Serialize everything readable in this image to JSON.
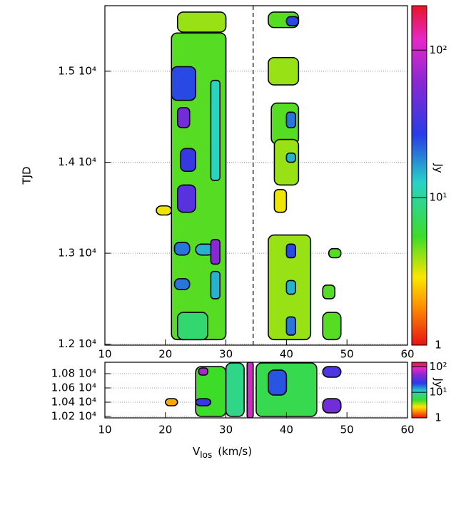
{
  "chart_data": [
    {
      "type": "heatmap",
      "ylabel": "TJD",
      "colorbar_label": "Jy",
      "log_color": true,
      "grid": true,
      "xlim": [
        10,
        60
      ],
      "xticks": [
        10,
        20,
        30,
        40,
        50,
        60
      ],
      "ylim": [
        11990,
        15720
      ],
      "yticks": [
        {
          "value": 12000,
          "label": "1.2 10⁴"
        },
        {
          "value": 13000,
          "label": "1.3 10⁴"
        },
        {
          "value": 14000,
          "label": "1.4 10⁴"
        },
        {
          "value": 15000,
          "label": "1.5 10⁴"
        }
      ],
      "clim": [
        1,
        200
      ],
      "cticks": [
        1,
        {
          "value": 10,
          "label": "10¹"
        },
        {
          "value": 100,
          "label": "10²"
        }
      ],
      "vline": 34.5,
      "cells": [
        {
          "x": [
            22,
            30
          ],
          "y": [
            15430,
            15650
          ],
          "value": 4
        },
        {
          "x": [
            21,
            30
          ],
          "y": [
            12050,
            15420
          ],
          "value": 5
        },
        {
          "x": [
            18.5,
            21
          ],
          "y": [
            13420,
            13520
          ],
          "value": 3
        },
        {
          "x": [
            21,
            25
          ],
          "y": [
            14680,
            15050
          ],
          "value": 25
        },
        {
          "x": [
            22,
            24
          ],
          "y": [
            14380,
            14600
          ],
          "value": 50
        },
        {
          "x": [
            22.5,
            25
          ],
          "y": [
            13900,
            14150
          ],
          "value": 30
        },
        {
          "x": [
            22,
            25
          ],
          "y": [
            13450,
            13750
          ],
          "value": 40
        },
        {
          "x": [
            21.5,
            24
          ],
          "y": [
            12980,
            13120
          ],
          "value": 20
        },
        {
          "x": [
            25,
            28
          ],
          "y": [
            12980,
            13100
          ],
          "value": 15
        },
        {
          "x": [
            27.5,
            29
          ],
          "y": [
            12880,
            13150
          ],
          "value": 60
        },
        {
          "x": [
            21.5,
            24
          ],
          "y": [
            12600,
            12720
          ],
          "value": 20
        },
        {
          "x": [
            27.5,
            29
          ],
          "y": [
            12500,
            12800
          ],
          "value": 15
        },
        {
          "x": [
            22,
            27
          ],
          "y": [
            12050,
            12350
          ],
          "value": 8
        },
        {
          "x": [
            27.5,
            29
          ],
          "y": [
            13800,
            14900
          ],
          "value": 12
        },
        {
          "x": [
            37,
            42
          ],
          "y": [
            15480,
            15650
          ],
          "value": 5
        },
        {
          "x": [
            40,
            42
          ],
          "y": [
            15500,
            15600
          ],
          "value": 25
        },
        {
          "x": [
            37,
            42
          ],
          "y": [
            14850,
            15150
          ],
          "value": 4
        },
        {
          "x": [
            37.5,
            42
          ],
          "y": [
            14200,
            14650
          ],
          "value": 5
        },
        {
          "x": [
            40,
            41.5
          ],
          "y": [
            14380,
            14550
          ],
          "value": 20
        },
        {
          "x": [
            38,
            42
          ],
          "y": [
            13750,
            14250
          ],
          "value": 4
        },
        {
          "x": [
            40,
            41.5
          ],
          "y": [
            14000,
            14100
          ],
          "value": 15
        },
        {
          "x": [
            38,
            40
          ],
          "y": [
            13450,
            13700
          ],
          "value": 3
        },
        {
          "x": [
            37,
            44
          ],
          "y": [
            12050,
            13200
          ],
          "value": 4
        },
        {
          "x": [
            40,
            41.5
          ],
          "y": [
            12950,
            13100
          ],
          "value": 25
        },
        {
          "x": [
            40,
            41.5
          ],
          "y": [
            12550,
            12700
          ],
          "value": 15
        },
        {
          "x": [
            40,
            41.5
          ],
          "y": [
            12100,
            12300
          ],
          "value": 20
        },
        {
          "x": [
            46,
            49
          ],
          "y": [
            12050,
            12350
          ],
          "value": 5
        },
        {
          "x": [
            46,
            48
          ],
          "y": [
            12500,
            12650
          ],
          "value": 5
        },
        {
          "x": [
            47,
            49
          ],
          "y": [
            12950,
            13050
          ],
          "value": 5
        }
      ]
    },
    {
      "type": "heatmap",
      "colorbar_label": "Jy",
      "log_color": true,
      "grid": true,
      "xlabel": {
        "main": "V",
        "sub": "los",
        "unit": "(km/s)"
      },
      "xlim": [
        10,
        60
      ],
      "xticks": [
        10,
        20,
        30,
        40,
        50,
        60
      ],
      "ylim": [
        10180,
        10960
      ],
      "yticks": [
        {
          "value": 10200,
          "label": "1.02 10⁴"
        },
        {
          "value": 10400,
          "label": "1.04 10⁴"
        },
        {
          "value": 10600,
          "label": "1.06 10⁴"
        },
        {
          "value": 10800,
          "label": "1.08 10⁴"
        }
      ],
      "clim": [
        1,
        150
      ],
      "cticks": [
        1,
        {
          "value": 10,
          "label": "10¹"
        },
        {
          "value": 100,
          "label": "10²"
        }
      ],
      "cells": [
        {
          "x": [
            25,
            30
          ],
          "y": [
            10200,
            10900
          ],
          "value": 5
        },
        {
          "x": [
            25.5,
            27
          ],
          "y": [
            10780,
            10880
          ],
          "value": 60
        },
        {
          "x": [
            25,
            27.5
          ],
          "y": [
            10350,
            10450
          ],
          "value": 25
        },
        {
          "x": [
            30,
            33
          ],
          "y": [
            10200,
            10950
          ],
          "value": 8
        },
        {
          "x": [
            35,
            45
          ],
          "y": [
            10200,
            10950
          ],
          "value": 6
        },
        {
          "x": [
            37,
            40
          ],
          "y": [
            10500,
            10850
          ],
          "value": 20
        },
        {
          "x": [
            46,
            49
          ],
          "y": [
            10750,
            10900
          ],
          "value": 30
        },
        {
          "x": [
            46,
            49
          ],
          "y": [
            10250,
            10450
          ],
          "value": 40
        },
        {
          "x": [
            20,
            22
          ],
          "y": [
            10350,
            10450
          ],
          "value": 2
        },
        {
          "x": [
            33.5,
            34.5
          ],
          "y": [
            10180,
            10960
          ],
          "value": 80
        }
      ]
    }
  ]
}
